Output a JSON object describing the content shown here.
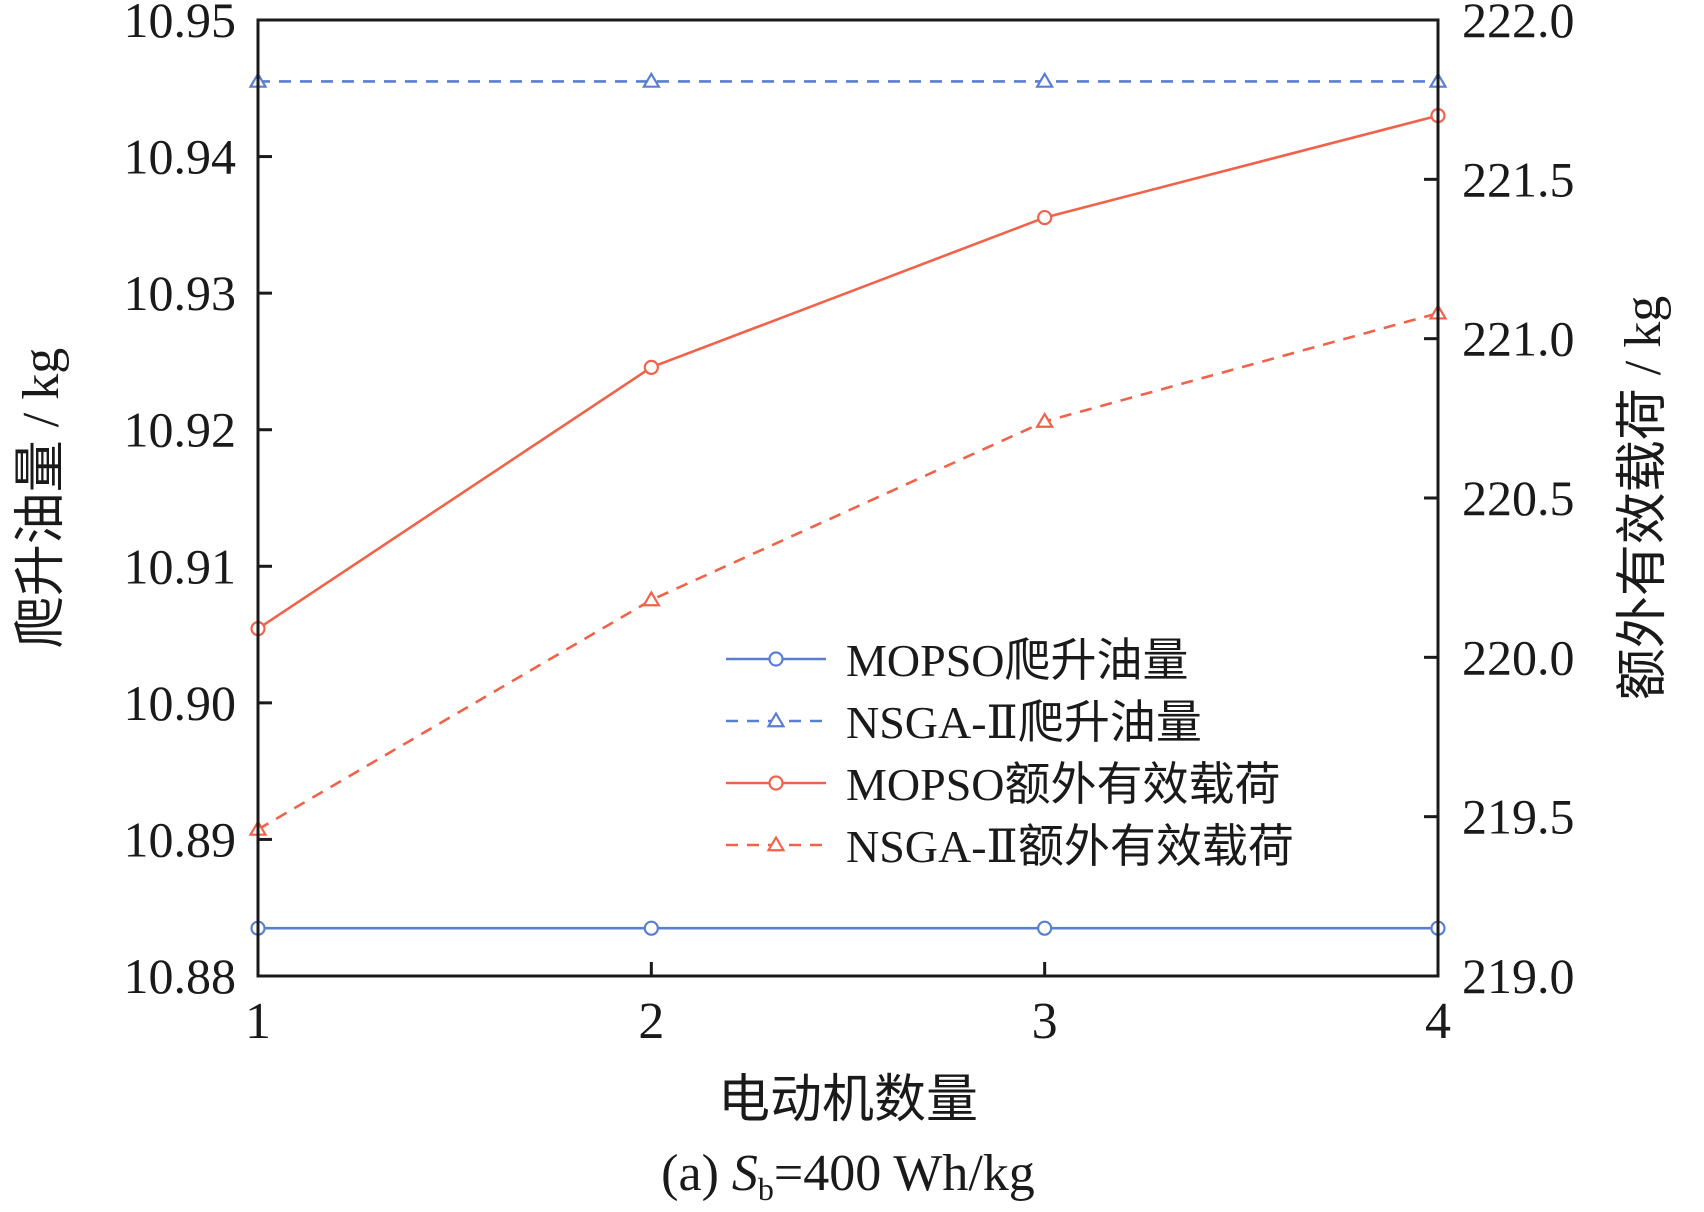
{
  "chart_data": {
    "type": "line",
    "title": "",
    "xlabel": "电动机数量",
    "ylabel": "爬升油量 / kg",
    "y2label": "额外有效载荷 / kg",
    "x": [
      1,
      2,
      3,
      4
    ],
    "x_tick_labels": [
      "1",
      "2",
      "3",
      "4"
    ],
    "xlim": [
      1,
      4
    ],
    "ylim": [
      10.88,
      10.95
    ],
    "y_ticks": [
      10.88,
      10.89,
      10.9,
      10.91,
      10.92,
      10.93,
      10.94,
      10.95
    ],
    "y_tick_labels": [
      "10.88",
      "10.89",
      "10.90",
      "10.91",
      "10.92",
      "10.93",
      "10.94",
      "10.95"
    ],
    "y2lim": [
      219.0,
      222.0
    ],
    "y2_ticks": [
      219.0,
      219.5,
      220.0,
      220.5,
      221.0,
      221.5,
      222.0
    ],
    "y2_tick_labels": [
      "219.0",
      "219.5",
      "220.0",
      "220.5",
      "221.0",
      "221.5",
      "222.0"
    ],
    "grid": false,
    "legend_position": "center-right",
    "series": [
      {
        "name": "MOPSO爬升油量",
        "axis": "left",
        "marker": "circle",
        "dash": "solid",
        "color": "#5b7fd0",
        "values": [
          10.8835,
          10.8835,
          10.8835,
          10.8835
        ]
      },
      {
        "name": "NSGA-Ⅱ爬升油量",
        "axis": "left",
        "marker": "triangle",
        "dash": "dashed",
        "color": "#5b7fd0",
        "values": [
          10.9455,
          10.9455,
          10.9455,
          10.9455
        ]
      },
      {
        "name": "MOPSO额外有效载荷",
        "axis": "right",
        "marker": "circle",
        "dash": "solid",
        "color": "#f0634a",
        "values": [
          220.09,
          220.91,
          221.38,
          221.7
        ]
      },
      {
        "name": "NSGA-Ⅱ额外有效载荷",
        "axis": "right",
        "marker": "triangle",
        "dash": "dashed",
        "color": "#f0634a",
        "values": [
          219.46,
          220.18,
          220.74,
          221.08
        ]
      }
    ],
    "caption": {
      "prefix": "(a) ",
      "symbol": "S",
      "subscript": "b",
      "suffix": "=400 Wh/kg"
    }
  }
}
